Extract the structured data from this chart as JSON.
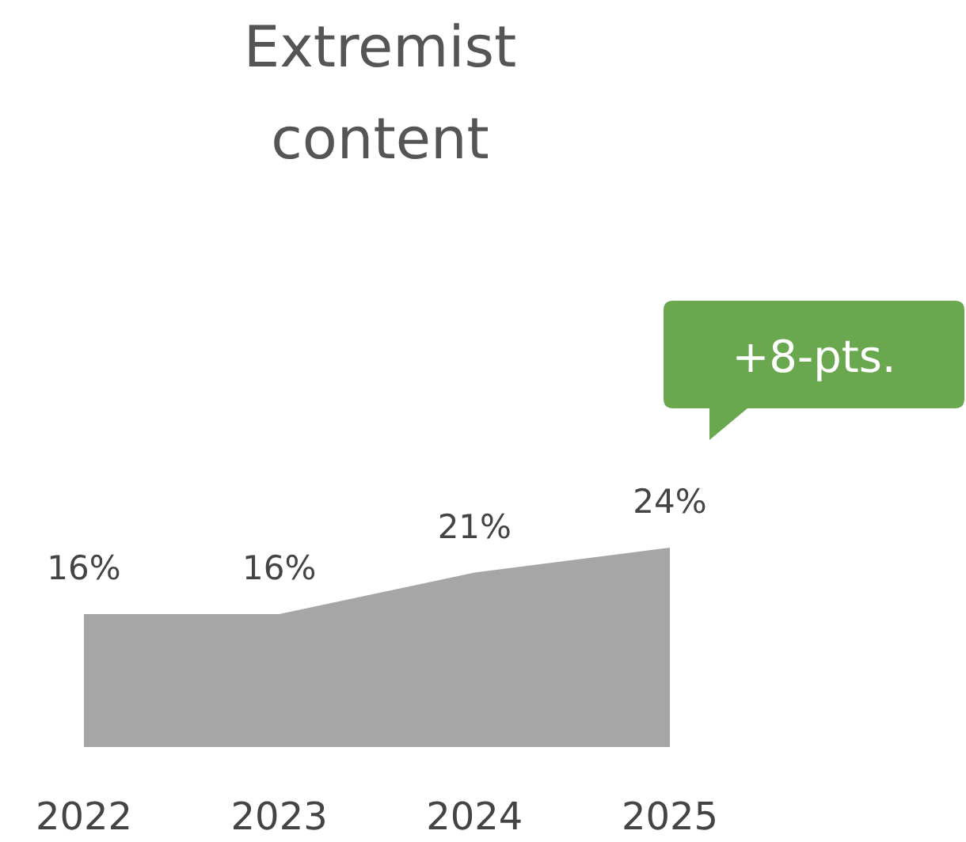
{
  "chart_data": {
    "type": "area",
    "title": "Extremist content",
    "categories": [
      "2022",
      "2023",
      "2024",
      "2025"
    ],
    "values": [
      16,
      16,
      21,
      24
    ],
    "value_labels": [
      "16%",
      "16%",
      "21%",
      "24%"
    ],
    "color": "#a6a6a6",
    "annotations": [
      "+8-pts."
    ]
  }
}
